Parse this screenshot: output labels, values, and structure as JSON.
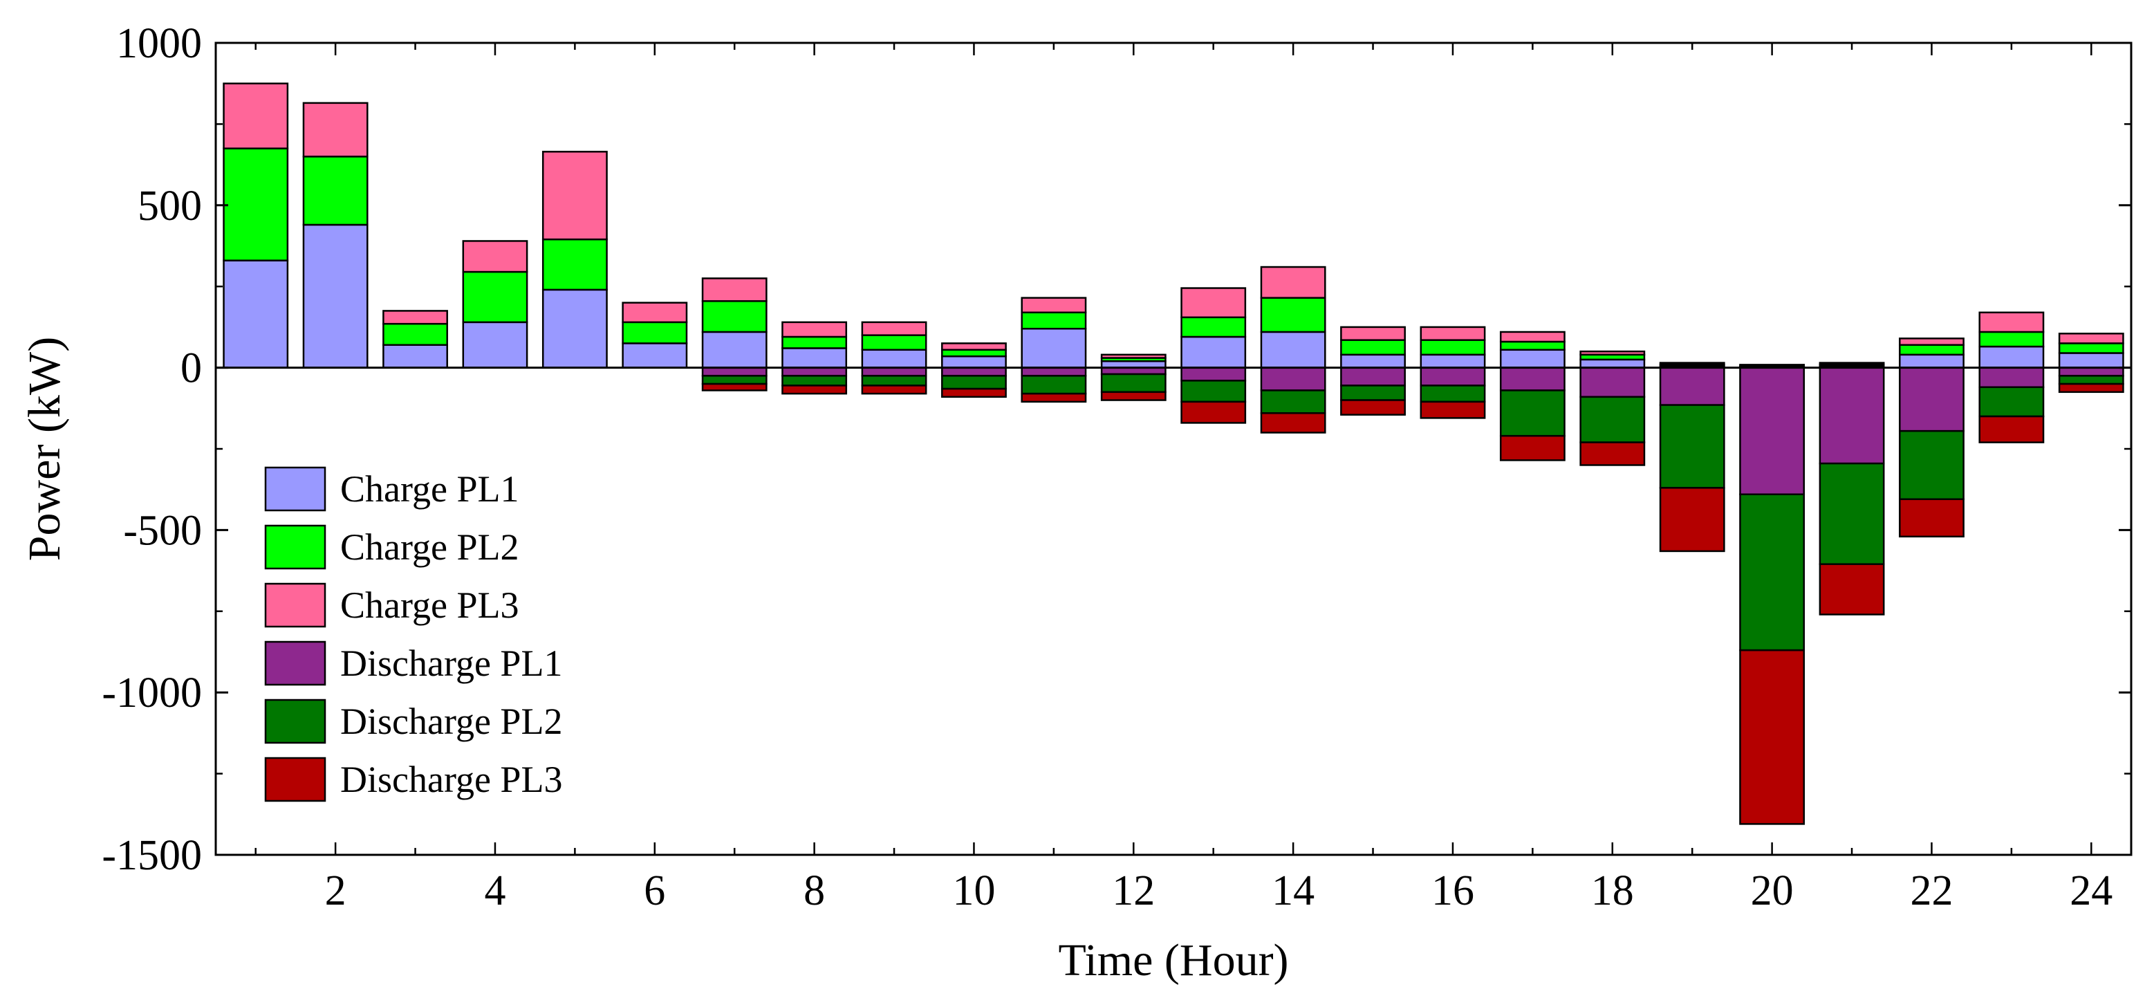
{
  "chart_data": {
    "type": "bar",
    "stacked": true,
    "title": "",
    "xlabel": "Time (Hour)",
    "ylabel": "Power (kW)",
    "ylim": [
      -1500,
      1000
    ],
    "xlim": [
      0.5,
      24.5
    ],
    "yticks": [
      1000,
      500,
      0,
      -500,
      -1000,
      -1500
    ],
    "xticks": [
      2,
      4,
      6,
      8,
      10,
      12,
      14,
      16,
      18,
      20,
      22,
      24
    ],
    "grid": false,
    "legend_position": "bottom-left",
    "categories": [
      1,
      2,
      3,
      4,
      5,
      6,
      7,
      8,
      9,
      10,
      11,
      12,
      13,
      14,
      15,
      16,
      17,
      18,
      19,
      20,
      21,
      22,
      23,
      24
    ],
    "series": [
      {
        "name": "Charge PL1",
        "color": "#9999FF",
        "values": [
          330,
          440,
          70,
          140,
          240,
          75,
          110,
          60,
          55,
          35,
          120,
          20,
          95,
          110,
          40,
          40,
          55,
          25,
          5,
          3,
          5,
          40,
          65,
          45
        ]
      },
      {
        "name": "Charge PL2",
        "color": "#00FF00",
        "values": [
          345,
          210,
          65,
          155,
          155,
          65,
          95,
          35,
          45,
          20,
          50,
          10,
          60,
          105,
          45,
          45,
          25,
          15,
          5,
          3,
          5,
          30,
          45,
          30
        ]
      },
      {
        "name": "Charge PL3",
        "color": "#FF6699",
        "values": [
          200,
          165,
          40,
          95,
          270,
          60,
          70,
          45,
          40,
          20,
          45,
          10,
          90,
          95,
          40,
          40,
          30,
          10,
          5,
          3,
          5,
          20,
          60,
          30
        ]
      },
      {
        "name": "Discharge PL1",
        "color": "#8E288E",
        "values": [
          0,
          0,
          0,
          0,
          0,
          0,
          -25,
          -25,
          -25,
          -25,
          -25,
          -20,
          -40,
          -70,
          -55,
          -55,
          -70,
          -90,
          -115,
          -390,
          -295,
          -195,
          -60,
          -25
        ]
      },
      {
        "name": "Discharge PL2",
        "color": "#007700",
        "values": [
          0,
          0,
          0,
          0,
          0,
          0,
          -25,
          -30,
          -30,
          -40,
          -55,
          -55,
          -65,
          -70,
          -45,
          -50,
          -140,
          -140,
          -255,
          -480,
          -310,
          -210,
          -90,
          -25
        ]
      },
      {
        "name": "Discharge PL3",
        "color": "#B40000",
        "values": [
          0,
          0,
          0,
          0,
          0,
          0,
          -20,
          -25,
          -25,
          -25,
          -25,
          -25,
          -65,
          -60,
          -45,
          -50,
          -75,
          -70,
          -195,
          -535,
          -155,
          -115,
          -80,
          -25
        ]
      }
    ]
  }
}
